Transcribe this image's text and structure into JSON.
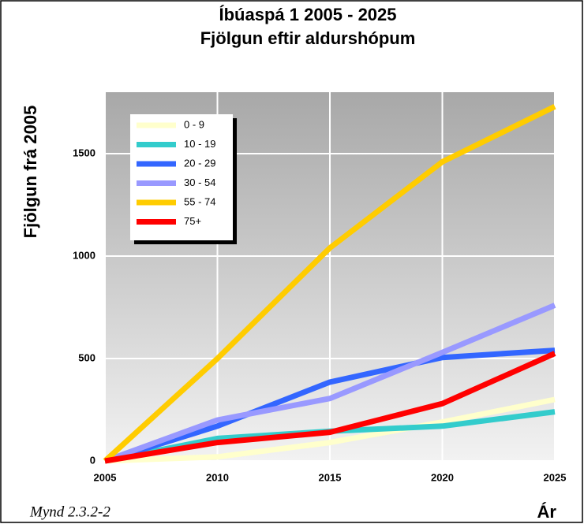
{
  "chart_data": {
    "type": "line",
    "title": "Íbúaspá 1 2005 - 2025",
    "subtitle": "Fjölgun eftir aldurshópum",
    "ylabel": "Fjölgun frá 2005",
    "xlabel": "Ár",
    "caption": "Mynd 2.3.2-2",
    "x": [
      2005,
      2010,
      2015,
      2020,
      2025
    ],
    "xlim": [
      2005,
      2025
    ],
    "xticks": [
      2005,
      2010,
      2015,
      2020,
      2025
    ],
    "ylim": [
      0,
      1800
    ],
    "yticks": [
      0,
      500,
      1000,
      1500
    ],
    "grid": true,
    "legend": "upper left",
    "series": [
      {
        "name": "0 - 9",
        "color": "#ffffcc",
        "values": [
          0,
          20,
          90,
          190,
          300
        ]
      },
      {
        "name": "10 - 19",
        "color": "#33cccc",
        "values": [
          0,
          110,
          145,
          170,
          240
        ]
      },
      {
        "name": "20 - 29",
        "color": "#3366ff",
        "values": [
          0,
          170,
          385,
          505,
          540
        ]
      },
      {
        "name": "30 - 54",
        "color": "#9999ff",
        "values": [
          0,
          200,
          305,
          530,
          760
        ]
      },
      {
        "name": "55 - 74",
        "color": "#ffcc00",
        "values": [
          0,
          500,
          1040,
          1460,
          1730
        ]
      },
      {
        "name": "75+",
        "color": "#ff0000",
        "values": [
          0,
          90,
          140,
          280,
          525
        ]
      }
    ]
  }
}
